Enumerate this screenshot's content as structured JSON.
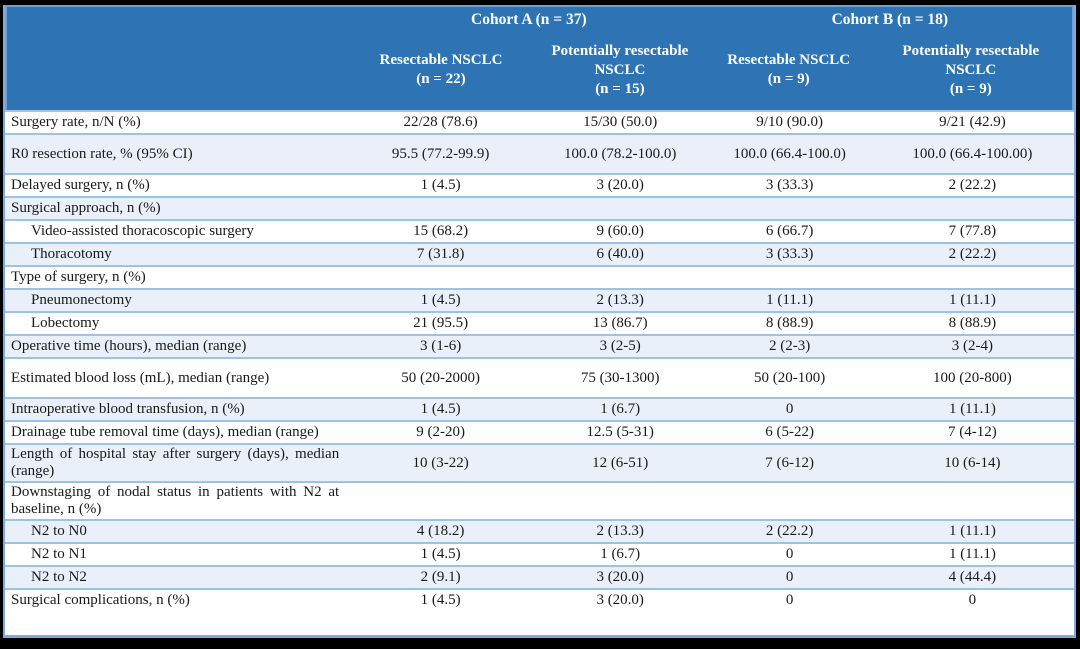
{
  "colors": {
    "header_fill": "#2E74B5",
    "header_text": "#ffffff",
    "alt_row_fill": "#E9F0F9",
    "grid_line": "#9CC2E5",
    "outer_border": "#7FACDC",
    "page_background": "#000000"
  },
  "table": {
    "cohort_groups": [
      {
        "label": "Cohort A (n = 37)"
      },
      {
        "label": "Cohort B (n = 18)"
      }
    ],
    "columns": [
      {
        "label": "Resectable NSCLC",
        "n": "(n = 22)"
      },
      {
        "label": "Potentially resectable NSCLC",
        "n": "(n = 15)"
      },
      {
        "label": "Resectable NSCLC",
        "n": "(n = 9)"
      },
      {
        "label": "Potentially resectable NSCLC",
        "n": "(n = 9)"
      }
    ],
    "rows": [
      {
        "label": "Surgery rate, n/N (%)",
        "indent": false,
        "values": [
          "22/28 (78.6)",
          "15/30 (50.0)",
          "9/10 (90.0)",
          "9/21 (42.9)"
        ]
      },
      {
        "label": "R0 resection rate, % (95% CI)",
        "indent": false,
        "values": [
          "95.5 (77.2-99.9)",
          "100.0 (78.2-100.0)",
          "100.0 (66.4-100.0)",
          "100.0 (66.4-100.00)"
        ]
      },
      {
        "label": "Delayed surgery, n (%)",
        "indent": false,
        "values": [
          "1 (4.5)",
          "3 (20.0)",
          "3 (33.3)",
          "2 (22.2)"
        ]
      },
      {
        "label": "Surgical approach, n (%)",
        "indent": false,
        "values": [
          "",
          "",
          "",
          ""
        ]
      },
      {
        "label": "Video-assisted thoracoscopic surgery",
        "indent": true,
        "values": [
          "15 (68.2)",
          "9 (60.0)",
          "6 (66.7)",
          "7 (77.8)"
        ]
      },
      {
        "label": "Thoracotomy",
        "indent": true,
        "values": [
          "7 (31.8)",
          "6 (40.0)",
          "3 (33.3)",
          "2 (22.2)"
        ]
      },
      {
        "label": "Type of surgery, n (%)",
        "indent": false,
        "values": [
          "",
          "",
          "",
          ""
        ]
      },
      {
        "label": "Pneumonectomy",
        "indent": true,
        "values": [
          "1 (4.5)",
          "2 (13.3)",
          "1 (11.1)",
          "1 (11.1)"
        ]
      },
      {
        "label": "Lobectomy",
        "indent": true,
        "values": [
          "21 (95.5)",
          "13 (86.7)",
          "8 (88.9)",
          "8 (88.9)"
        ]
      },
      {
        "label": "Operative time (hours), median (range)",
        "indent": false,
        "values": [
          "3 (1-6)",
          "3 (2-5)",
          "2 (2-3)",
          "3 (2-4)"
        ]
      },
      {
        "label": "Estimated blood loss (mL), median (range)",
        "indent": false,
        "values": [
          "50 (20-2000)",
          "75 (30-1300)",
          "50 (20-100)",
          "100 (20-800)"
        ]
      },
      {
        "label": "Intraoperative blood transfusion, n (%)",
        "indent": false,
        "values": [
          "1 (4.5)",
          "1 (6.7)",
          "0",
          "1 (11.1)"
        ]
      },
      {
        "label": "Drainage tube removal time (days), median (range)",
        "indent": false,
        "values": [
          "9 (2-20)",
          "12.5 (5-31)",
          "6 (5-22)",
          "7 (4-12)"
        ]
      },
      {
        "label": "Length of hospital stay after surgery (days), median (range)",
        "indent": false,
        "values": [
          "10 (3-22)",
          "12 (6-51)",
          "7 (6-12)",
          "10 (6-14)"
        ]
      },
      {
        "label": "Downstaging of nodal status in patients with N2 at baseline, n (%)",
        "indent": false,
        "values": [
          "",
          "",
          "",
          ""
        ]
      },
      {
        "label": "N2 to N0",
        "indent": true,
        "values": [
          "4 (18.2)",
          "2 (13.3)",
          "2 (22.2)",
          "1 (11.1)"
        ]
      },
      {
        "label": "N2 to N1",
        "indent": true,
        "values": [
          "1 (4.5)",
          "1 (6.7)",
          "0",
          "1 (11.1)"
        ]
      },
      {
        "label": "N2 to N2",
        "indent": true,
        "values": [
          "2 (9.1)",
          "3 (20.0)",
          "0",
          "4 (44.4)"
        ]
      },
      {
        "label": "Surgical complications, n (%)",
        "indent": false,
        "values": [
          "1 (4.5)",
          "3 (20.0)",
          "0",
          "0"
        ]
      }
    ]
  }
}
